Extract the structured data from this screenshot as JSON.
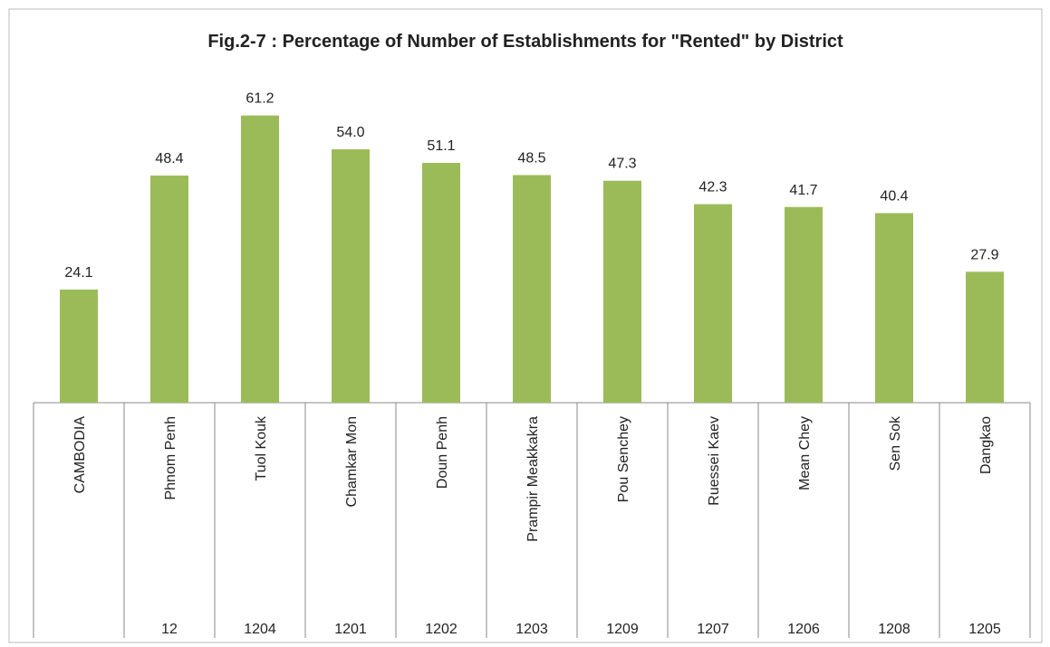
{
  "chart_data": {
    "type": "bar",
    "title": "Fig.2-7 : Percentage of Number of Establishments for \"Rented\" by District",
    "categories": [
      "CAMBODIA",
      "Phnom Penh",
      "Tuol Kouk",
      "Chamkar Mon",
      "Doun Penh",
      "Prampir Meakkakra",
      "Pou Senchey",
      "Ruessei Kaev",
      "Mean Chey",
      "Sen Sok",
      "Dangkao"
    ],
    "codes": [
      null,
      "12",
      "1204",
      "1201",
      "1202",
      "1203",
      "1209",
      "1207",
      "1206",
      "1208",
      "1205"
    ],
    "values": [
      24.1,
      48.4,
      61.2,
      54.0,
      51.1,
      48.5,
      47.3,
      42.3,
      41.7,
      40.4,
      27.9
    ],
    "value_labels": [
      "24.1",
      "48.4",
      "61.2",
      "54.0",
      "51.1",
      "48.5",
      "47.3",
      "42.3",
      "41.7",
      "40.4",
      "27.9"
    ],
    "color": "#9bbb59",
    "ylim": [
      0,
      70
    ]
  }
}
